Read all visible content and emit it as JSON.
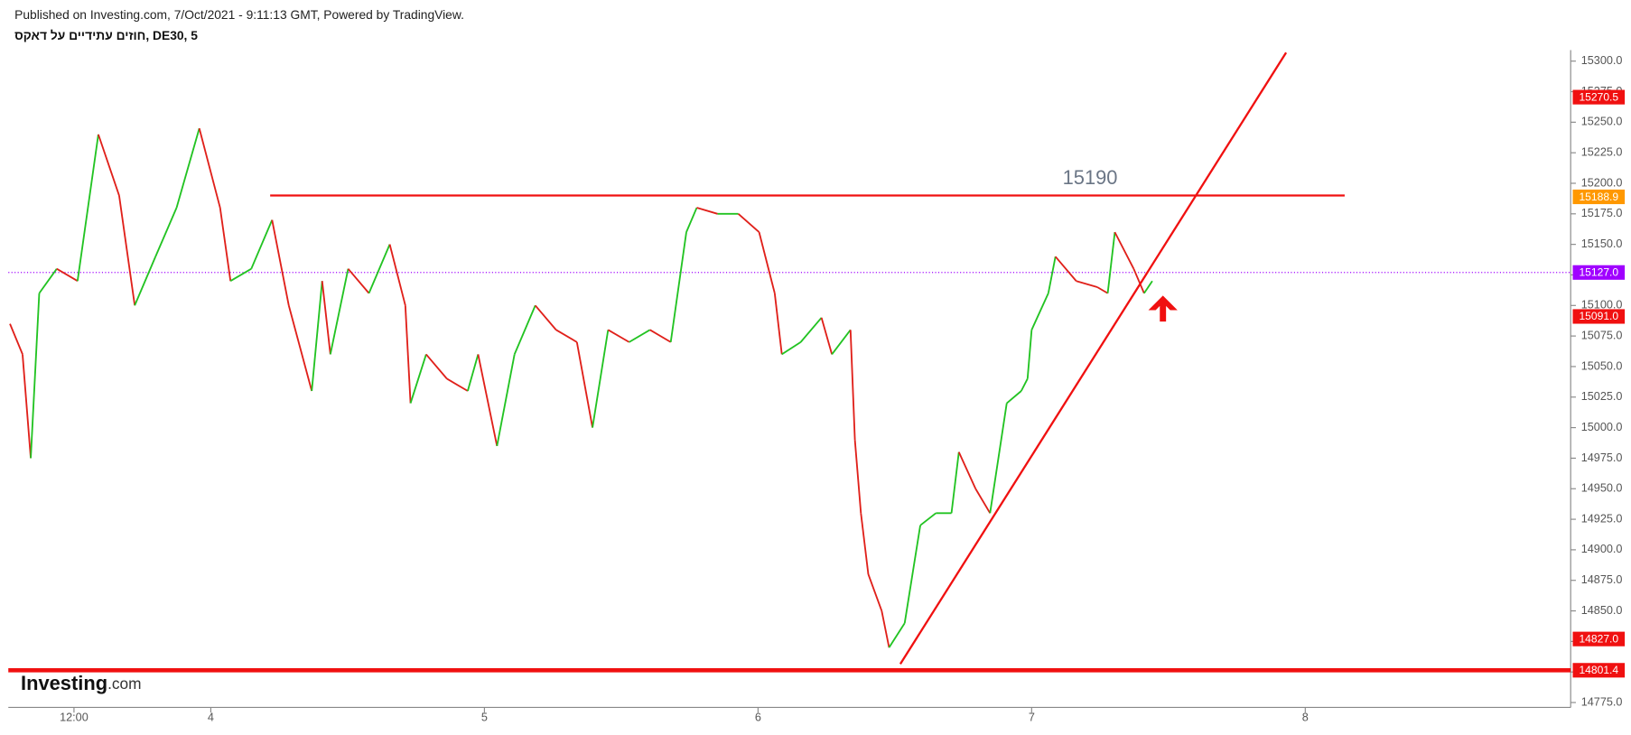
{
  "header": {
    "published": "Published on Investing.com, 7/Oct/2021 - 9:11:13 GMT, Powered by TradingView.",
    "symbol": "חוזים עתידיים על דאקס, DE30, 5"
  },
  "watermark": {
    "brand": "Investing",
    "suffix": ".com"
  },
  "chart_data": {
    "type": "line",
    "x": [
      3.266,
      3.312,
      3.342,
      3.373,
      3.437,
      3.513,
      3.589,
      3.665,
      3.722,
      3.798,
      3.875,
      3.958,
      4.034,
      4.072,
      4.148,
      4.224,
      4.285,
      4.369,
      4.407,
      4.437,
      4.502,
      4.578,
      4.654,
      4.711,
      4.73,
      4.787,
      4.863,
      4.939,
      4.977,
      5.046,
      5.11,
      5.186,
      5.262,
      5.338,
      5.395,
      5.452,
      5.529,
      5.605,
      5.681,
      5.738,
      5.776,
      5.852,
      5.928,
      6.004,
      6.061,
      6.087,
      6.156,
      6.232,
      6.27,
      6.338,
      6.354,
      6.376,
      6.403,
      6.452,
      6.479,
      6.536,
      6.593,
      6.65,
      6.707,
      6.734,
      6.795,
      6.848,
      6.909,
      6.962,
      6.985,
      7.0,
      7.061,
      7.087,
      7.163,
      7.24,
      7.278,
      7.304,
      7.373,
      7.411,
      7.441
    ],
    "series": [
      {
        "up_color": "#22c322",
        "down_color": "#e0201a",
        "values": [
          15085,
          15060,
          14975,
          15110,
          15130,
          15120,
          15240,
          15190,
          15100,
          15140,
          15180,
          15245,
          15180,
          15120,
          15130,
          15170,
          15100,
          15030,
          15120,
          15060,
          15130,
          15110,
          15150,
          15100,
          15020,
          15060,
          15040,
          15030,
          15060,
          14985,
          15060,
          15100,
          15080,
          15070,
          15000,
          15080,
          15070,
          15080,
          15070,
          15160,
          15180,
          15175,
          15175,
          15160,
          15110,
          15060,
          15070,
          15090,
          15060,
          15080,
          14990,
          14930,
          14880,
          14850,
          14820,
          14840,
          14920,
          14930,
          14930,
          14980,
          14950,
          14930,
          15020,
          15030,
          15040,
          15080,
          15110,
          15140,
          15120,
          15115,
          15110,
          15160,
          15130,
          15110,
          15120
        ]
      }
    ],
    "xlim": [
      3.26,
      8.97
    ],
    "ylim": [
      14771,
      15309
    ],
    "xticks": [
      {
        "value": 3.5,
        "label": "12:00"
      },
      4,
      5,
      6,
      7,
      8
    ],
    "yticks": [
      {
        "value": 14775,
        "label": "14775.0"
      },
      {
        "value": 14800,
        "label": "14800.0"
      },
      {
        "value": 14825,
        "label": "14825.0"
      },
      {
        "value": 14850,
        "label": "14850.0"
      },
      {
        "value": 14875,
        "label": "14875.0"
      },
      {
        "value": 14900,
        "label": "14900.0"
      },
      {
        "value": 14925,
        "label": "14925.0"
      },
      {
        "value": 14950,
        "label": "14950.0"
      },
      {
        "value": 14975,
        "label": "14975.0"
      },
      {
        "value": 15000,
        "label": "15000.0"
      },
      {
        "value": 15025,
        "label": "15025.0"
      },
      {
        "value": 15050,
        "label": "15050.0"
      },
      {
        "value": 15075,
        "label": "15075.0"
      },
      {
        "value": 15100,
        "label": "15100.0"
      },
      {
        "value": 15125,
        "label": "15125.0"
      },
      {
        "value": 15150,
        "label": "15150.0"
      },
      {
        "value": 15175,
        "label": "15175.0"
      },
      {
        "value": 15200,
        "label": "15200.0"
      },
      {
        "value": 15225,
        "label": "15225.0"
      },
      {
        "value": 15250,
        "label": "15250.0"
      },
      {
        "value": 15275,
        "label": "15275.0"
      },
      {
        "value": 15300,
        "label": "15300.0"
      }
    ],
    "price_labels": [
      {
        "value": 15270.5,
        "label": "15270.5",
        "color": "#f01010"
      },
      {
        "value": 15188.9,
        "label": "15188.9",
        "color": "#ff9800"
      },
      {
        "value": 15091.0,
        "label": "15091.0",
        "color": "#f01010"
      },
      {
        "value": 15127.0,
        "label": "15127.0",
        "color": "#a000ff"
      },
      {
        "value": 14827.0,
        "label": "14827.0",
        "color": "#f01010"
      },
      {
        "value": 14801.4,
        "label": "14801.4",
        "color": "#f01010"
      }
    ],
    "resistance": {
      "value": 15190,
      "label": "15190",
      "from": 4.217,
      "to": 8.144,
      "color": "#f01010"
    },
    "support": {
      "value": 14801.4,
      "color": "#f01010"
    },
    "current_price": {
      "value": 15127.0,
      "color": "#a000ff"
    },
    "trend_line": {
      "x": [
        6.52,
        7.93
      ],
      "y": [
        14806.5,
        15307
      ],
      "color": "#f01010"
    }
  }
}
